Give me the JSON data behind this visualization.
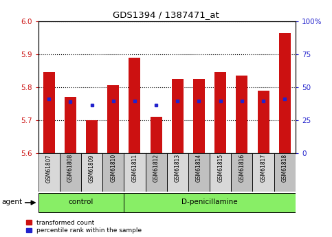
{
  "title": "GDS1394 / 1387471_at",
  "samples": [
    "GSM61807",
    "GSM61808",
    "GSM61809",
    "GSM61810",
    "GSM61811",
    "GSM61812",
    "GSM61813",
    "GSM61814",
    "GSM61815",
    "GSM61816",
    "GSM61817",
    "GSM61818"
  ],
  "transformed_counts": [
    5.845,
    5.77,
    5.7,
    5.805,
    5.89,
    5.71,
    5.825,
    5.825,
    5.845,
    5.835,
    5.79,
    5.965
  ],
  "percentile_values": [
    5.763,
    5.755,
    5.745,
    5.757,
    5.757,
    5.745,
    5.757,
    5.757,
    5.757,
    5.757,
    5.757,
    5.763
  ],
  "groups": [
    "control",
    "control",
    "control",
    "control",
    "D-penicillamine",
    "D-penicillamine",
    "D-penicillamine",
    "D-penicillamine",
    "D-penicillamine",
    "D-penicillamine",
    "D-penicillamine",
    "D-penicillamine"
  ],
  "ylim": [
    5.6,
    6.0
  ],
  "yticks_left": [
    5.6,
    5.7,
    5.8,
    5.9,
    6.0
  ],
  "yticks_right": [
    0,
    25,
    50,
    75,
    100
  ],
  "bar_color": "#cc1111",
  "percentile_color": "#2222cc",
  "tick_label_color_left": "#cc1111",
  "tick_label_color_right": "#2222cc",
  "bar_width": 0.55,
  "base_value": 5.6,
  "agent_bg_light": "#88ee66",
  "agent_bg_dark": "#66cc44",
  "sample_bg_light": "#d8d8d8",
  "sample_bg_dark": "#c0c0c0"
}
